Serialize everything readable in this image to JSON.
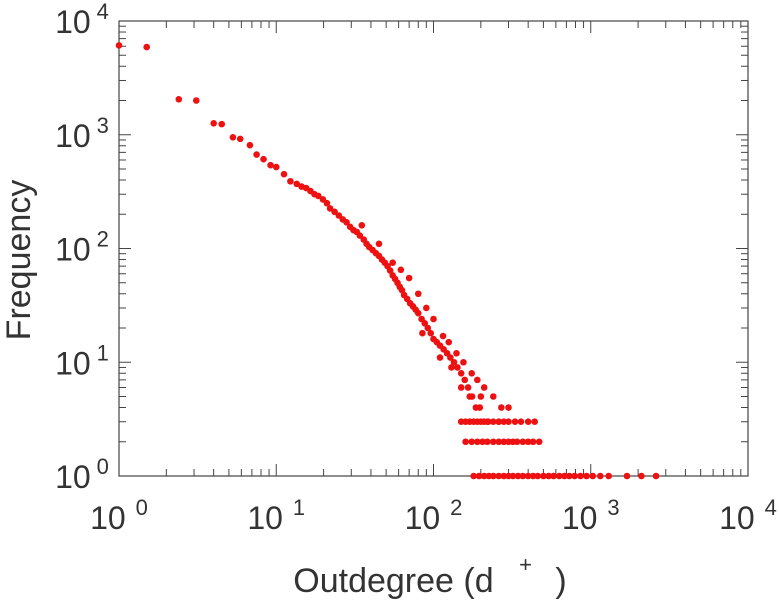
{
  "chart_data": {
    "type": "scatter",
    "xlabel": "Outdegree (d",
    "xlabel_superscript": "+",
    "xlabel_close": ")",
    "ylabel": "Frequency",
    "x_scale": "log",
    "y_scale": "log",
    "xlim": [
      1,
      10000
    ],
    "ylim": [
      1,
      10000
    ],
    "grid": false,
    "x_ticks": [
      {
        "base": "10",
        "exp": "0",
        "value": 1
      },
      {
        "base": "10",
        "exp": "1",
        "value": 10
      },
      {
        "base": "10",
        "exp": "2",
        "value": 100
      },
      {
        "base": "10",
        "exp": "3",
        "value": 1000
      },
      {
        "base": "10",
        "exp": "4",
        "value": 10000
      }
    ],
    "y_ticks": [
      {
        "base": "10",
        "exp": "0",
        "value": 1
      },
      {
        "base": "10",
        "exp": "1",
        "value": 10
      },
      {
        "base": "10",
        "exp": "2",
        "value": 100
      },
      {
        "base": "10",
        "exp": "3",
        "value": 1000
      },
      {
        "base": "10",
        "exp": "4",
        "value": 10000
      }
    ],
    "marker_color": "#ee1111",
    "points": [
      [
        1.0,
        6100
      ],
      [
        1.5,
        5900
      ],
      [
        2.4,
        2050
      ],
      [
        3.1,
        2000
      ],
      [
        4.0,
        1260
      ],
      [
        4.5,
        1240
      ],
      [
        5.3,
        950
      ],
      [
        5.9,
        920
      ],
      [
        6.8,
        810
      ],
      [
        7.5,
        670
      ],
      [
        8.3,
        610
      ],
      [
        9.2,
        540
      ],
      [
        10.0,
        520
      ],
      [
        11.2,
        450
      ],
      [
        12.3,
        390
      ],
      [
        13.5,
        370
      ],
      [
        14.5,
        350
      ],
      [
        15.5,
        340
      ],
      [
        16.5,
        320
      ],
      [
        17.5,
        300
      ],
      [
        18.5,
        290
      ],
      [
        19.8,
        270
      ],
      [
        21.0,
        250
      ],
      [
        22.0,
        225
      ],
      [
        23.5,
        210
      ],
      [
        25.0,
        195
      ],
      [
        26.5,
        180
      ],
      [
        28.0,
        170
      ],
      [
        29.5,
        155
      ],
      [
        31.0,
        145
      ],
      [
        32.5,
        140
      ],
      [
        34.0,
        130
      ],
      [
        36.0,
        120
      ],
      [
        37.5,
        110
      ],
      [
        39.0,
        103
      ],
      [
        41.0,
        97
      ],
      [
        43.0,
        91
      ],
      [
        45.0,
        86
      ],
      [
        47.0,
        80
      ],
      [
        49.0,
        75
      ],
      [
        51.0,
        70
      ],
      [
        53.0,
        64
      ],
      [
        55.0,
        58
      ],
      [
        57.0,
        54
      ],
      [
        59.0,
        50
      ],
      [
        61.0,
        46
      ],
      [
        63.0,
        43
      ],
      [
        65.0,
        39
      ],
      [
        68.0,
        36
      ],
      [
        71.0,
        33
      ],
      [
        74.0,
        31
      ],
      [
        77.0,
        29
      ],
      [
        80.0,
        27
      ],
      [
        84.0,
        24
      ],
      [
        88.0,
        22
      ],
      [
        92.0,
        20
      ],
      [
        96.0,
        18
      ],
      [
        100.0,
        16
      ],
      [
        105.0,
        15
      ],
      [
        110.0,
        14
      ],
      [
        116.0,
        13
      ],
      [
        122.0,
        12
      ],
      [
        128.0,
        11
      ],
      [
        135.0,
        10
      ],
      [
        142.0,
        9
      ],
      [
        150.0,
        8
      ],
      [
        158.0,
        7
      ],
      [
        166.0,
        6
      ],
      [
        176.0,
        5
      ],
      [
        186.0,
        4
      ],
      [
        197.0,
        4
      ],
      [
        210.0,
        3
      ],
      [
        223.0,
        3
      ],
      [
        35.0,
        160
      ],
      [
        45.0,
        110
      ],
      [
        55.0,
        75
      ],
      [
        62.0,
        65
      ],
      [
        70.0,
        55
      ],
      [
        80.0,
        40
      ],
      [
        90.0,
        30
      ],
      [
        100.0,
        24
      ],
      [
        115.0,
        17
      ],
      [
        125.0,
        15
      ],
      [
        140.0,
        12
      ],
      [
        155.0,
        10
      ],
      [
        175.0,
        8
      ],
      [
        190.0,
        7
      ],
      [
        210.0,
        6
      ],
      [
        240.0,
        5
      ],
      [
        270.0,
        4
      ],
      [
        300.0,
        4
      ],
      [
        85.0,
        18
      ],
      [
        110.0,
        11
      ],
      [
        130.0,
        9
      ],
      [
        150.0,
        6
      ],
      [
        170.0,
        5
      ],
      [
        200.0,
        5
      ],
      [
        260.0,
        3
      ],
      [
        150.0,
        3
      ],
      [
        160.0,
        3
      ],
      [
        170.0,
        3
      ],
      [
        180.0,
        3
      ],
      [
        190.0,
        3
      ],
      [
        200.0,
        3
      ],
      [
        220.0,
        3
      ],
      [
        240.0,
        3
      ],
      [
        260.0,
        3
      ],
      [
        280.0,
        3
      ],
      [
        300.0,
        3
      ],
      [
        330.0,
        3
      ],
      [
        360.0,
        3
      ],
      [
        400.0,
        3
      ],
      [
        440.0,
        3
      ],
      [
        160.0,
        2
      ],
      [
        175.0,
        2
      ],
      [
        190.0,
        2
      ],
      [
        205.0,
        2
      ],
      [
        220.0,
        2
      ],
      [
        240.0,
        2
      ],
      [
        260.0,
        2
      ],
      [
        280.0,
        2
      ],
      [
        300.0,
        2
      ],
      [
        320.0,
        2
      ],
      [
        340.0,
        2
      ],
      [
        370.0,
        2
      ],
      [
        400.0,
        2
      ],
      [
        430.0,
        2
      ],
      [
        470.0,
        2
      ],
      [
        180.0,
        1
      ],
      [
        195.0,
        1
      ],
      [
        210.0,
        1
      ],
      [
        225.0,
        1
      ],
      [
        240.0,
        1
      ],
      [
        260.0,
        1
      ],
      [
        280.0,
        1
      ],
      [
        300.0,
        1
      ],
      [
        320.0,
        1
      ],
      [
        345.0,
        1
      ],
      [
        370.0,
        1
      ],
      [
        400.0,
        1
      ],
      [
        430.0,
        1
      ],
      [
        460.0,
        1
      ],
      [
        500.0,
        1
      ],
      [
        540.0,
        1
      ],
      [
        580.0,
        1
      ],
      [
        630.0,
        1
      ],
      [
        680.0,
        1
      ],
      [
        730.0,
        1
      ],
      [
        790.0,
        1
      ],
      [
        860.0,
        1
      ],
      [
        940.0,
        1
      ],
      [
        1030.0,
        1
      ],
      [
        1150.0,
        1
      ],
      [
        1300.0,
        1
      ],
      [
        1700.0,
        1
      ],
      [
        2100.0,
        1
      ],
      [
        2600.0,
        1
      ]
    ]
  }
}
